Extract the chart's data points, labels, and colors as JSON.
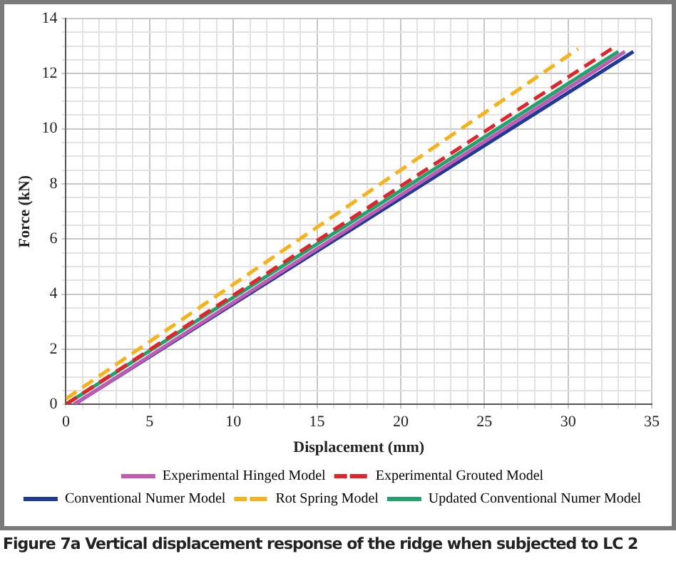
{
  "chart_data": {
    "type": "line",
    "xlabel": "Displacement (mm)",
    "ylabel": "Force (kN)",
    "xlim": [
      0,
      35
    ],
    "ylim": [
      0,
      14
    ],
    "xticks": [
      0,
      {
        "value": 1,
        "label": null
      },
      {
        "value": 2,
        "label": null
      },
      {
        "value": 3,
        "label": null
      },
      {
        "value": 4,
        "label": null
      },
      5,
      {
        "value": 6,
        "label": null
      },
      {
        "value": 7,
        "label": null
      },
      {
        "value": 8,
        "label": null
      },
      {
        "value": 9,
        "label": null
      },
      10,
      {
        "value": 11,
        "label": null
      },
      {
        "value": 12,
        "label": null
      },
      {
        "value": 13,
        "label": null
      },
      {
        "value": 14,
        "label": null
      },
      15,
      {
        "value": 16,
        "label": null
      },
      {
        "value": 17,
        "label": null
      },
      {
        "value": 18,
        "label": null
      },
      {
        "value": 19,
        "label": null
      },
      20,
      {
        "value": 21,
        "label": null
      },
      {
        "value": 22,
        "label": null
      },
      {
        "value": 23,
        "label": null
      },
      {
        "value": 24,
        "label": null
      },
      25,
      {
        "value": 26,
        "label": null
      },
      {
        "value": 27,
        "label": null
      },
      {
        "value": 28,
        "label": null
      },
      {
        "value": 29,
        "label": null
      },
      30,
      {
        "value": 31,
        "label": null
      },
      {
        "value": 32,
        "label": null
      },
      {
        "value": 33,
        "label": null
      },
      {
        "value": 34,
        "label": null
      },
      35
    ],
    "yticks": [
      0,
      {
        "value": 0.5,
        "label": null
      },
      {
        "value": 1,
        "label": null
      },
      {
        "value": 1.5,
        "label": null
      },
      2,
      {
        "value": 2.5,
        "label": null
      },
      {
        "value": 3,
        "label": null
      },
      {
        "value": 3.5,
        "label": null
      },
      4,
      {
        "value": 4.5,
        "label": null
      },
      {
        "value": 5,
        "label": null
      },
      {
        "value": 5.5,
        "label": null
      },
      6,
      {
        "value": 6.5,
        "label": null
      },
      {
        "value": 7,
        "label": null
      },
      {
        "value": 7.5,
        "label": null
      },
      8,
      {
        "value": 8.5,
        "label": null
      },
      {
        "value": 9,
        "label": null
      },
      {
        "value": 9.5,
        "label": null
      },
      10,
      {
        "value": 10.5,
        "label": null
      },
      {
        "value": 11,
        "label": null
      },
      {
        "value": 11.5,
        "label": null
      },
      12,
      {
        "value": 12.5,
        "label": null
      },
      {
        "value": 13,
        "label": null
      },
      {
        "value": 13.5,
        "label": null
      },
      14
    ],
    "grid": true,
    "legend": "bottom",
    "marker": "none",
    "series": [
      {
        "name": "Experimental Hinged Model",
        "color": "#c05bb5",
        "line_style": "solid",
        "x": [
          0.5,
          33.4
        ],
        "values": [
          0,
          12.8
        ]
      },
      {
        "name": "Experimental Grouted Model",
        "color": "#e0242b",
        "line_style": "dashed",
        "x": [
          0,
          32.6
        ],
        "values": [
          0,
          12.9
        ]
      },
      {
        "name": "Conventional Numer Model",
        "color": "#1f3a93",
        "line_style": "solid",
        "x": [
          0.5,
          33.9
        ],
        "values": [
          0,
          12.8
        ]
      },
      {
        "name": "Rot Spring Model",
        "color": "#f5b21a",
        "line_style": "dashed",
        "x": [
          0,
          30.6
        ],
        "values": [
          0.2,
          12.9
        ]
      },
      {
        "name": "Updated Conventional Numer Model",
        "color": "#21a36b",
        "line_style": "solid",
        "x": [
          0,
          33
        ],
        "values": [
          0,
          12.8
        ]
      }
    ],
    "annotations": [
      "Figure 7a Vertical displacement response of the ridge when subjected to LC 2"
    ]
  }
}
